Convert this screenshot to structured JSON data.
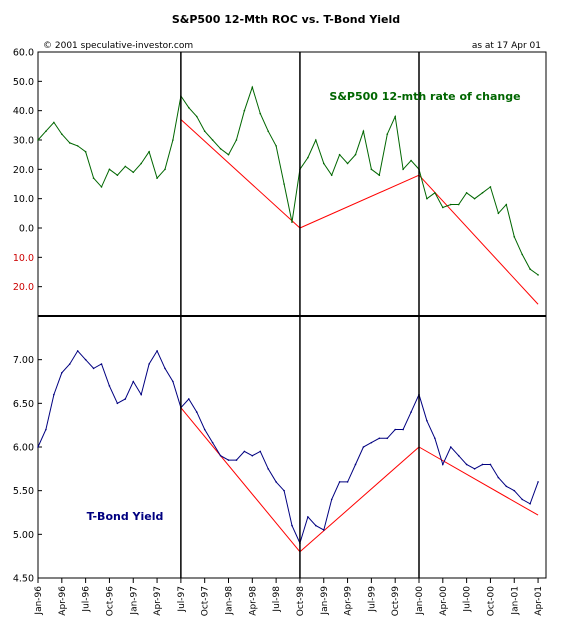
{
  "title": "S&P500 12-Mth ROC vs. T-Bond Yield",
  "copyright": "© 2001 speculative-investor.com",
  "as_at": "as at 17 Apr 01",
  "chart_data": [
    {
      "type": "line",
      "panel": "top",
      "series_label": "S&P500 12-mth rate of change",
      "y_tick_labels": [
        "60.0",
        "50.0",
        "40.0",
        "30.0",
        "20.0",
        "10.0",
        "0.0",
        "10.0",
        "20.0"
      ],
      "y_tick_values": [
        60,
        50,
        40,
        30,
        20,
        10,
        0,
        -10,
        -20
      ],
      "ylim": [
        -30,
        60
      ],
      "colors": {
        "line": "#006600",
        "label": "#006600",
        "negative_ticks": "#cc0000",
        "trend": "#ff0000"
      },
      "series": [
        {
          "name": "S&P500 12-mth rate of change",
          "x": [
            "1996-01",
            "1996-02",
            "1996-03",
            "1996-04",
            "1996-05",
            "1996-06",
            "1996-07",
            "1996-08",
            "1996-09",
            "1996-10",
            "1996-11",
            "1996-12",
            "1997-01",
            "1997-02",
            "1997-03",
            "1997-04",
            "1997-05",
            "1997-06",
            "1997-07",
            "1997-08",
            "1997-09",
            "1997-10",
            "1997-11",
            "1997-12",
            "1998-01",
            "1998-02",
            "1998-03",
            "1998-04",
            "1998-05",
            "1998-06",
            "1998-07",
            "1998-08",
            "1998-09",
            "1998-10",
            "1998-11",
            "1998-12",
            "1999-01",
            "1999-02",
            "1999-03",
            "1999-04",
            "1999-05",
            "1999-06",
            "1999-07",
            "1999-08",
            "1999-09",
            "1999-10",
            "1999-11",
            "1999-12",
            "2000-01",
            "2000-02",
            "2000-03",
            "2000-04",
            "2000-05",
            "2000-06",
            "2000-07",
            "2000-08",
            "2000-09",
            "2000-10",
            "2000-11",
            "2000-12",
            "2001-01",
            "2001-02",
            "2001-03",
            "2001-04"
          ],
          "y": [
            30,
            33,
            36,
            32,
            29,
            28,
            26,
            17,
            14,
            20,
            18,
            21,
            19,
            22,
            26,
            17,
            20,
            30,
            45,
            41,
            38,
            33,
            30,
            27,
            25,
            30,
            40,
            48,
            39,
            33,
            28,
            15,
            2,
            20,
            24,
            30,
            22,
            18,
            25,
            22,
            25,
            33,
            20,
            18,
            32,
            38,
            20,
            23,
            20,
            10,
            12,
            7,
            8,
            8,
            12,
            10,
            12,
            14,
            5,
            8,
            -3,
            -9,
            -14,
            -16
          ]
        }
      ],
      "trend_lines": [
        {
          "x": [
            "1997-07",
            "1998-10"
          ],
          "y": [
            37,
            0
          ]
        },
        {
          "x": [
            "1998-10",
            "2000-01"
          ],
          "y": [
            0,
            18
          ]
        },
        {
          "x": [
            "2000-01",
            "2001-04"
          ],
          "y": [
            18,
            -26
          ]
        }
      ]
    },
    {
      "type": "line",
      "panel": "bottom",
      "series_label": "T-Bond Yield",
      "y_tick_labels": [
        "7.00",
        "6.50",
        "6.00",
        "5.50",
        "5.00",
        "4.50"
      ],
      "y_tick_values": [
        7.0,
        6.5,
        6.0,
        5.5,
        5.0,
        4.5
      ],
      "ylim": [
        4.5,
        7.5
      ],
      "colors": {
        "line": "#000080",
        "label": "#000080",
        "trend": "#ff0000"
      },
      "series": [
        {
          "name": "T-Bond Yield",
          "x": [
            "1996-01",
            "1996-02",
            "1996-03",
            "1996-04",
            "1996-05",
            "1996-06",
            "1996-07",
            "1996-08",
            "1996-09",
            "1996-10",
            "1996-11",
            "1996-12",
            "1997-01",
            "1997-02",
            "1997-03",
            "1997-04",
            "1997-05",
            "1997-06",
            "1997-07",
            "1997-08",
            "1997-09",
            "1997-10",
            "1997-11",
            "1997-12",
            "1998-01",
            "1998-02",
            "1998-03",
            "1998-04",
            "1998-05",
            "1998-06",
            "1998-07",
            "1998-08",
            "1998-09",
            "1998-10",
            "1998-11",
            "1998-12",
            "1999-01",
            "1999-02",
            "1999-03",
            "1999-04",
            "1999-05",
            "1999-06",
            "1999-07",
            "1999-08",
            "1999-09",
            "1999-10",
            "1999-11",
            "1999-12",
            "2000-01",
            "2000-02",
            "2000-03",
            "2000-04",
            "2000-05",
            "2000-06",
            "2000-07",
            "2000-08",
            "2000-09",
            "2000-10",
            "2000-11",
            "2000-12",
            "2001-01",
            "2001-02",
            "2001-03",
            "2001-04"
          ],
          "y": [
            6.0,
            6.2,
            6.6,
            6.85,
            6.95,
            7.1,
            7.0,
            6.9,
            6.95,
            6.7,
            6.5,
            6.55,
            6.75,
            6.6,
            6.95,
            7.1,
            6.9,
            6.75,
            6.45,
            6.55,
            6.4,
            6.2,
            6.05,
            5.9,
            5.85,
            5.85,
            5.95,
            5.9,
            5.95,
            5.75,
            5.6,
            5.5,
            5.1,
            4.9,
            5.2,
            5.1,
            5.05,
            5.4,
            5.6,
            5.6,
            5.8,
            6.0,
            6.05,
            6.1,
            6.1,
            6.2,
            6.2,
            6.4,
            6.6,
            6.3,
            6.1,
            5.8,
            6.0,
            5.9,
            5.8,
            5.75,
            5.8,
            5.8,
            5.65,
            5.55,
            5.5,
            5.4,
            5.35,
            5.6
          ]
        }
      ],
      "trend_lines": [
        {
          "x": [
            "1997-07",
            "1998-10"
          ],
          "y": [
            6.45,
            4.8
          ]
        },
        {
          "x": [
            "1998-10",
            "2000-01"
          ],
          "y": [
            4.8,
            6.0
          ]
        },
        {
          "x": [
            "2000-01",
            "2001-04"
          ],
          "y": [
            6.0,
            5.22
          ]
        }
      ]
    }
  ],
  "x_axis": {
    "tick_labels": [
      "Jan-96",
      "Apr-96",
      "Jul-96",
      "Oct-96",
      "Jan-97",
      "Apr-97",
      "Jul-97",
      "Oct-97",
      "Jan-98",
      "Apr-98",
      "Jul-98",
      "Oct-98",
      "Jan-99",
      "Apr-99",
      "Jul-99",
      "Oct-99",
      "Jan-00",
      "Apr-00",
      "Jul-00",
      "Oct-00",
      "Jan-01",
      "Apr-01"
    ],
    "tick_dates": [
      "1996-01",
      "1996-04",
      "1996-07",
      "1996-10",
      "1997-01",
      "1997-04",
      "1997-07",
      "1997-10",
      "1998-01",
      "1998-04",
      "1998-07",
      "1998-10",
      "1999-01",
      "1999-04",
      "1999-07",
      "1999-10",
      "2000-01",
      "2000-04",
      "2000-07",
      "2000-10",
      "2001-01",
      "2001-04"
    ],
    "range": [
      "1996-01",
      "2001-05"
    ]
  },
  "vertical_markers": [
    "1997-07",
    "1998-10",
    "2000-01"
  ]
}
